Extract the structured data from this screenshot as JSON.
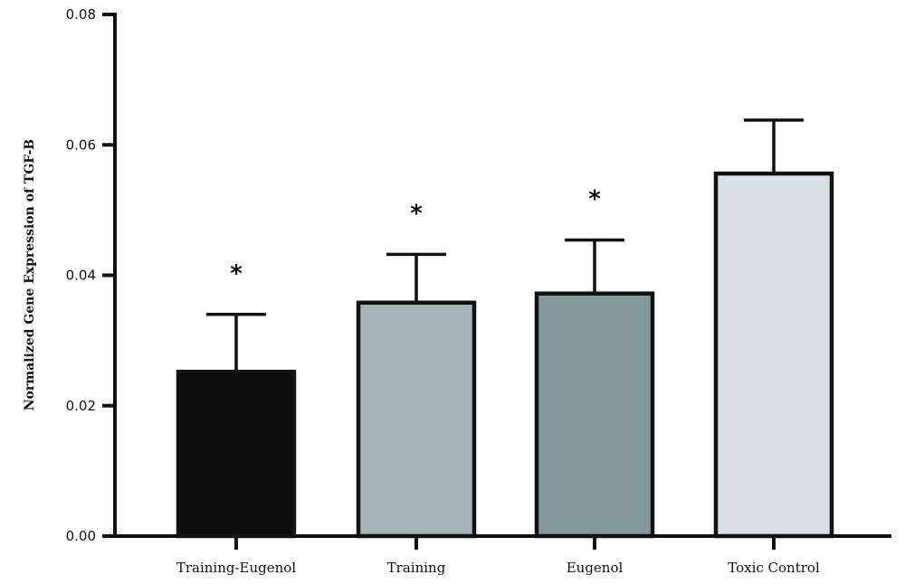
{
  "chart_data": {
    "type": "bar",
    "title": "",
    "xlabel": "",
    "ylabel": "Normalized Gene Expression of TGF-B",
    "ylim": [
      0,
      0.08
    ],
    "yticks": [
      "0.00",
      "0.02",
      "0.04",
      "0.06",
      "0.08"
    ],
    "ytick_values": [
      0,
      0.02,
      0.04,
      0.06,
      0.08
    ],
    "grid": false,
    "legend": "none",
    "categories": [
      "Training-Eugenol",
      "Training",
      "Eugenol",
      "Toxic Control"
    ],
    "values": [
      0.0252,
      0.0358,
      0.0372,
      0.0556
    ],
    "error_upper": [
      0.0088,
      0.0074,
      0.0082,
      0.0082
    ],
    "significance": [
      "*",
      "*",
      "*",
      ""
    ],
    "colors": [
      "#0c0c0c",
      "#a6b3bb",
      "#83999c",
      "#d8e0e6"
    ],
    "edge_color": "#111111"
  }
}
